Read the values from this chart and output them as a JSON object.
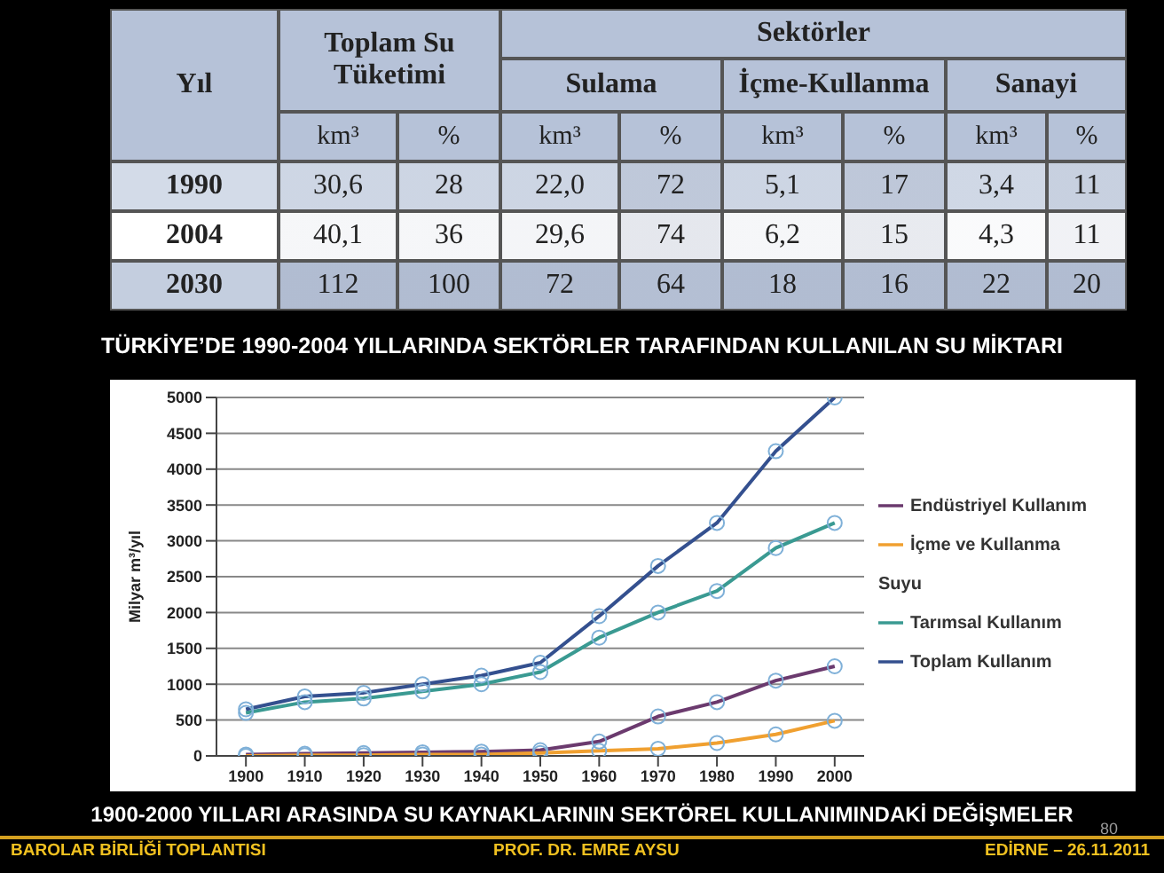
{
  "chart_data": [
    {
      "type": "heatmap",
      "title": "TÜRKİYE’DE 1990-2004 YILLARINDA SEKTÖRLER TARAFINDAN KULLANILAN SU MİKTARI",
      "categories": [
        "km³",
        "%",
        "km³",
        "%",
        "km³",
        "%",
        "km³",
        "%"
      ],
      "y_categories": [
        "1990",
        "2004",
        "2030"
      ],
      "cells": [
        [
          30.6,
          28,
          22.0,
          72,
          5.1,
          17,
          3.4,
          11
        ],
        [
          40.1,
          36,
          29.6,
          74,
          6.2,
          15,
          4.3,
          11
        ],
        [
          112,
          100,
          72,
          64,
          18,
          16,
          22,
          20
        ]
      ],
      "cell_labels": [
        [
          "30,6",
          "28",
          "22,0",
          "72",
          "5,1",
          "17",
          "3,4",
          "11"
        ],
        [
          "40,1",
          "36",
          "29,6",
          "74",
          "6,2",
          "15",
          "4,3",
          "11"
        ],
        [
          "112",
          "100",
          "72",
          "64",
          "18",
          "16",
          "22",
          "20"
        ]
      ],
      "annotations": [
        "Yıl",
        "Toplam Su Tüketimi",
        "Sektörler",
        "Sulama",
        "İçme-Kullanma",
        "Sanayi"
      ]
    },
    {
      "type": "line",
      "title": "1900-2000 YILLARI ARASINDA SU KAYNAKLARININ SEKTÖREL KULLANIMINDAKİ DEĞİŞMELER",
      "ylabel": "Milyar m³/yıl",
      "x": [
        1900,
        1910,
        1920,
        1930,
        1940,
        1950,
        1960,
        1970,
        1980,
        1990,
        2000
      ],
      "xlim": [
        1895,
        2005
      ],
      "xticks": [
        1900,
        1910,
        1920,
        1930,
        1940,
        1950,
        1960,
        1970,
        1980,
        1990,
        2000
      ],
      "ylim": [
        0,
        5000
      ],
      "yticks": [
        0,
        500,
        1000,
        1500,
        2000,
        2500,
        3000,
        3500,
        4000,
        4500,
        5000
      ],
      "grid": "y",
      "legend": "right",
      "marker": "circle",
      "line_style": "solid",
      "series": [
        {
          "name": "Endüstriyel Kullanım",
          "color": "#6b3a6e",
          "values": [
            20,
            30,
            40,
            50,
            60,
            80,
            200,
            550,
            750,
            1050,
            1250
          ]
        },
        {
          "name": "İçme ve Kullanma Suyu",
          "color": "#f0a030",
          "values": [
            0,
            10,
            10,
            20,
            20,
            40,
            70,
            100,
            180,
            300,
            490
          ]
        },
        {
          "name": "Tarımsal Kullanım",
          "color": "#3a9a92",
          "values": [
            600,
            750,
            800,
            900,
            1000,
            1170,
            1650,
            2000,
            2300,
            2900,
            3250
          ]
        },
        {
          "name": "Toplam Kullanım",
          "color": "#34508f",
          "values": [
            650,
            830,
            880,
            1000,
            1120,
            1300,
            1950,
            2650,
            3250,
            4250,
            5000
          ]
        }
      ],
      "annotations": [
        "BAROLAR BİRLİĞİ TOPLANTISI",
        "PROF. DR. EMRE AYSU",
        "EDİRNE – 26.11.2011",
        "80"
      ]
    }
  ]
}
